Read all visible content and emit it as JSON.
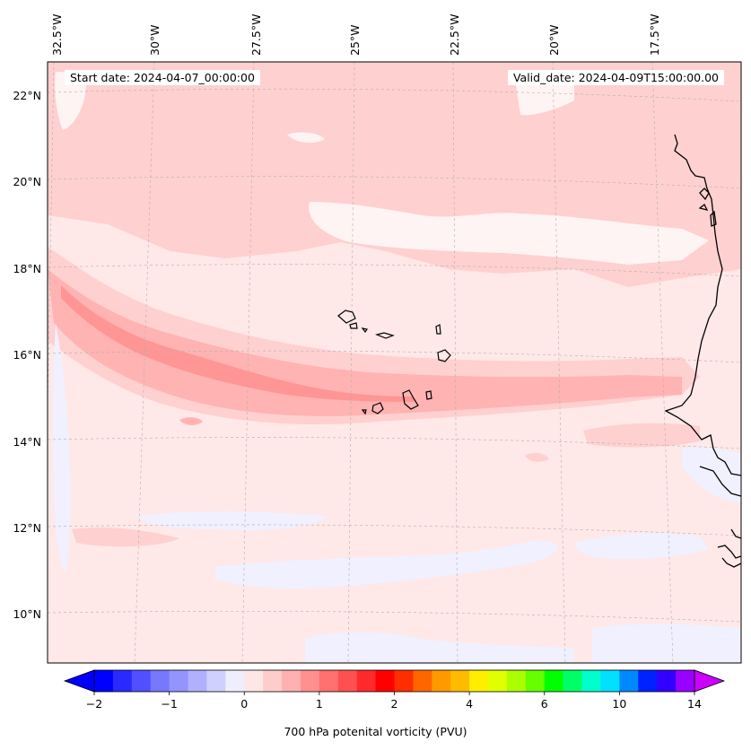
{
  "header": {
    "start_label": "Start date: 2024-04-07_00:00:00",
    "valid_label": "Valid_date: 2024-04-09T15:00:00.00"
  },
  "axes": {
    "lon_labels": [
      "32.5°W",
      "30°W",
      "27.5°W",
      "25°W",
      "22.5°W",
      "20°W",
      "17.5°W"
    ],
    "lat_labels": [
      "22°N",
      "20°N",
      "18°N",
      "16°N",
      "14°N",
      "12°N",
      "10°N"
    ]
  },
  "colorbar": {
    "label": "700 hPa potenital vorticity (PVU)",
    "tick_labels": [
      "−2",
      "−1",
      "0",
      "1",
      "2",
      "4",
      "6",
      "10",
      "14"
    ],
    "colors": [
      "#0000ff",
      "#2a2aff",
      "#5050ff",
      "#7878ff",
      "#9494ff",
      "#b0b0ff",
      "#d0d0ff",
      "#eeeeff",
      "#ffe6e6",
      "#ffcccc",
      "#ffb0b0",
      "#ff9090",
      "#ff7070",
      "#ff5050",
      "#ff2a2a",
      "#ff0000",
      "#ff2e00",
      "#ff6600",
      "#ff9900",
      "#ffbb00",
      "#ffee00",
      "#e0ff00",
      "#aaff00",
      "#66ff00",
      "#00ff00",
      "#00ff66",
      "#00ffcc",
      "#00e0ff",
      "#0088ff",
      "#0022ff",
      "#3300ff",
      "#9900ff"
    ],
    "extend_min_color": "#0000ff",
    "extend_max_color": "#cc00ff"
  },
  "map_colors": {
    "background": "#ffe8e8",
    "light_pink": "#ffd0d0",
    "mid_pink": "#ffb3b3",
    "strong_pink": "#ff9595",
    "light_blue": "#f0f0ff",
    "near_white": "#fff4f4"
  }
}
